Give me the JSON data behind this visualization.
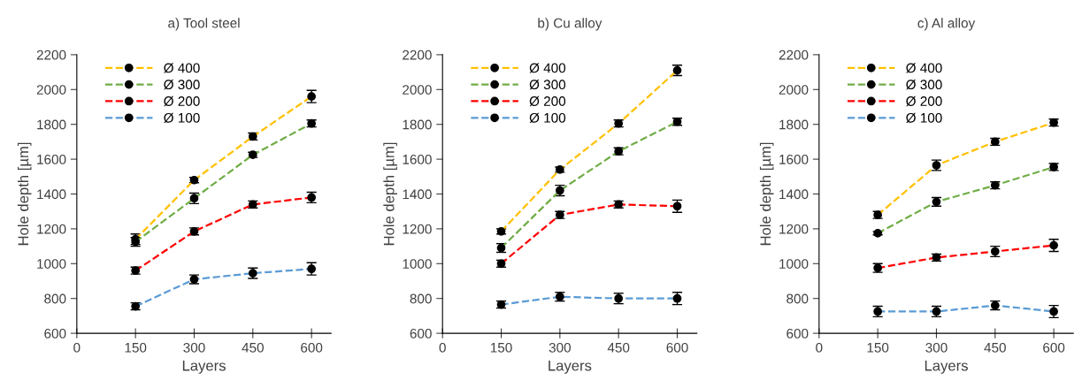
{
  "chart_data": [
    {
      "type": "line",
      "title": "a) Tool steel",
      "xlabel": "Layers",
      "ylabel": "Hole depth [µm]",
      "x": [
        150,
        300,
        450,
        600
      ],
      "xlim": [
        0,
        650
      ],
      "ylim": [
        600,
        2200
      ],
      "xticks": [
        0,
        150,
        300,
        450,
        600
      ],
      "yticks": [
        600,
        800,
        1000,
        1200,
        1400,
        1600,
        1800,
        2000,
        2200
      ],
      "legend": "top left",
      "marker": "circle",
      "line_style": "dashed",
      "series": [
        {
          "name": "Ø 400",
          "color": "#ffc000",
          "values": [
            1140,
            1480,
            1730,
            1960
          ],
          "errors": [
            30,
            15,
            20,
            35
          ]
        },
        {
          "name": "Ø 300",
          "color": "#70ad47",
          "values": [
            1125,
            1375,
            1625,
            1805
          ],
          "errors": [
            25,
            30,
            15,
            20
          ]
        },
        {
          "name": "Ø 200",
          "color": "#ff0000",
          "values": [
            960,
            1185,
            1340,
            1380
          ],
          "errors": [
            20,
            20,
            20,
            30
          ]
        },
        {
          "name": "Ø 100",
          "color": "#5b9bd5",
          "values": [
            755,
            910,
            945,
            970
          ],
          "errors": [
            20,
            25,
            30,
            35
          ]
        }
      ]
    },
    {
      "type": "line",
      "title": "b) Cu alloy",
      "xlabel": "Layers",
      "ylabel": "Hole depth [µm]",
      "x": [
        150,
        300,
        450,
        600
      ],
      "xlim": [
        0,
        650
      ],
      "ylim": [
        600,
        2200
      ],
      "xticks": [
        0,
        150,
        300,
        450,
        600
      ],
      "yticks": [
        600,
        800,
        1000,
        1200,
        1400,
        1600,
        1800,
        2000,
        2200
      ],
      "legend": "top left",
      "marker": "circle",
      "line_style": "dashed",
      "series": [
        {
          "name": "Ø 400",
          "color": "#ffc000",
          "values": [
            1185,
            1540,
            1805,
            2110
          ],
          "errors": [
            15,
            15,
            20,
            30
          ]
        },
        {
          "name": "Ø 300",
          "color": "#70ad47",
          "values": [
            1090,
            1420,
            1645,
            1815
          ],
          "errors": [
            25,
            30,
            20,
            20
          ]
        },
        {
          "name": "Ø 200",
          "color": "#ff0000",
          "values": [
            1000,
            1280,
            1340,
            1330
          ],
          "errors": [
            20,
            20,
            20,
            35
          ]
        },
        {
          "name": "Ø 100",
          "color": "#5b9bd5",
          "values": [
            765,
            810,
            800,
            800
          ],
          "errors": [
            20,
            25,
            30,
            35
          ]
        }
      ]
    },
    {
      "type": "line",
      "title": "c) Al alloy",
      "xlabel": "Layers",
      "ylabel": "Hole depth [µm]",
      "x": [
        150,
        300,
        450,
        600
      ],
      "xlim": [
        0,
        650
      ],
      "ylim": [
        600,
        2200
      ],
      "xticks": [
        0,
        150,
        300,
        450,
        600
      ],
      "yticks": [
        600,
        800,
        1000,
        1200,
        1400,
        1600,
        1800,
        2000,
        2200
      ],
      "legend": "top left",
      "marker": "circle",
      "line_style": "dashed",
      "series": [
        {
          "name": "Ø 400",
          "color": "#ffc000",
          "values": [
            1280,
            1565,
            1700,
            1810
          ],
          "errors": [
            20,
            30,
            20,
            20
          ]
        },
        {
          "name": "Ø 300",
          "color": "#70ad47",
          "values": [
            1175,
            1355,
            1450,
            1555
          ],
          "errors": [
            10,
            25,
            20,
            20
          ]
        },
        {
          "name": "Ø 200",
          "color": "#ff0000",
          "values": [
            975,
            1035,
            1070,
            1105
          ],
          "errors": [
            25,
            20,
            30,
            35
          ]
        },
        {
          "name": "Ø 100",
          "color": "#5b9bd5",
          "values": [
            725,
            725,
            760,
            725
          ],
          "errors": [
            30,
            30,
            25,
            35
          ]
        }
      ]
    }
  ]
}
